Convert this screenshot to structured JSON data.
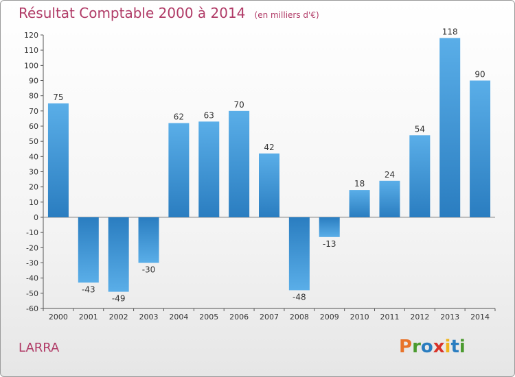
{
  "header": {
    "title": "Résultat Comptable 2000 à 2014",
    "subtitle": "(en milliers d'€)"
  },
  "footer": {
    "commune": "LARRA",
    "logo_text": "Proxiti"
  },
  "colors": {
    "bar_light": "#5aaee8",
    "bar_dark": "#2a7dc0",
    "title": "#b03a66",
    "logo_letters": [
      "#e8732a",
      "#4a9a2e",
      "#2a7dc0",
      "#d8342a",
      "#f0b41c",
      "#2a7dc0",
      "#4a9a2e"
    ]
  },
  "chart_data": {
    "type": "bar",
    "categories": [
      "2000",
      "2001",
      "2002",
      "2003",
      "2004",
      "2005",
      "2006",
      "2007",
      "2008",
      "2009",
      "2010",
      "2011",
      "2012",
      "2013",
      "2014"
    ],
    "values": [
      75,
      -43,
      -49,
      -30,
      62,
      63,
      70,
      42,
      -48,
      -13,
      18,
      24,
      54,
      118,
      90
    ],
    "ylim": [
      -60,
      120
    ],
    "yticks": [
      -60,
      -50,
      -40,
      -30,
      -20,
      -10,
      0,
      10,
      20,
      30,
      40,
      50,
      60,
      70,
      80,
      90,
      100,
      110,
      120
    ],
    "grid": false
  }
}
